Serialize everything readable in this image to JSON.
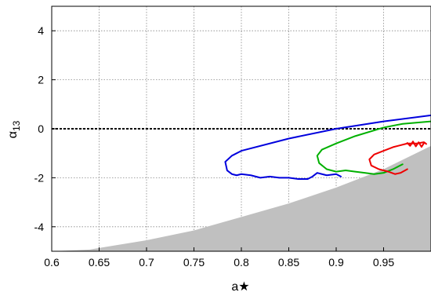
{
  "chart_data": {
    "type": "line",
    "xlabel": "a★",
    "ylabel": "α",
    "ylabel_subscript": "13",
    "xlim": [
      0.6,
      1.0
    ],
    "ylim": [
      -5,
      5
    ],
    "xticks": [
      0.6,
      0.65,
      0.7,
      0.75,
      0.8,
      0.85,
      0.9,
      0.95
    ],
    "yticks": [
      -4,
      -2,
      0,
      2,
      4
    ],
    "grid": true,
    "colors": {
      "blue": "#0000dd",
      "green": "#00b000",
      "red": "#ee0000",
      "shade": "#c0c0c0",
      "zero_line": "#000000"
    },
    "shaded_region": {
      "x": [
        0.6,
        0.64,
        0.7,
        0.75,
        0.8,
        0.85,
        0.9,
        0.95,
        1.0
      ],
      "y": [
        -5.0,
        -4.93,
        -4.55,
        -4.15,
        -3.6,
        -3.05,
        -2.4,
        -1.65,
        -0.7
      ]
    },
    "zero_line": {
      "y": 0
    },
    "series": [
      {
        "color": "blue",
        "x": [
          1.0,
          0.95,
          0.9,
          0.85,
          0.8,
          0.79,
          0.783,
          0.785,
          0.79,
          0.795,
          0.8,
          0.81,
          0.82,
          0.83,
          0.84,
          0.85,
          0.86,
          0.87,
          0.875,
          0.88,
          0.885,
          0.89,
          0.9,
          0.905
        ],
        "y": [
          0.55,
          0.3,
          0.0,
          -0.4,
          -0.9,
          -1.1,
          -1.35,
          -1.7,
          -1.85,
          -1.9,
          -1.85,
          -1.9,
          -2.0,
          -1.95,
          -2.0,
          -2.0,
          -2.05,
          -2.05,
          -1.95,
          -1.8,
          -1.85,
          -1.9,
          -1.85,
          -1.95
        ]
      },
      {
        "color": "green",
        "x": [
          1.0,
          0.97,
          0.95,
          0.92,
          0.9,
          0.885,
          0.88,
          0.882,
          0.89,
          0.9,
          0.91,
          0.92,
          0.93,
          0.94,
          0.95,
          0.96,
          0.97
        ],
        "y": [
          0.3,
          0.2,
          0.05,
          -0.3,
          -0.6,
          -0.85,
          -1.1,
          -1.4,
          -1.65,
          -1.75,
          -1.7,
          -1.75,
          -1.8,
          -1.85,
          -1.8,
          -1.65,
          -1.45
        ]
      },
      {
        "color": "red",
        "x": [
          0.9925,
          0.985,
          0.975,
          0.96,
          0.95,
          0.94,
          0.935,
          0.937,
          0.945,
          0.955,
          0.962,
          0.968,
          0.975
        ],
        "y": [
          -0.55,
          -0.6,
          -0.6,
          -0.75,
          -0.9,
          -1.05,
          -1.25,
          -1.5,
          -1.65,
          -1.75,
          -1.85,
          -1.8,
          -1.65
        ]
      },
      {
        "color": "red",
        "x": [
          0.975,
          0.978,
          0.981,
          0.984,
          0.987,
          0.99,
          0.993,
          0.995
        ],
        "y": [
          -0.58,
          -0.7,
          -0.52,
          -0.72,
          -0.55,
          -0.74,
          -0.56,
          -0.62
        ]
      }
    ]
  }
}
